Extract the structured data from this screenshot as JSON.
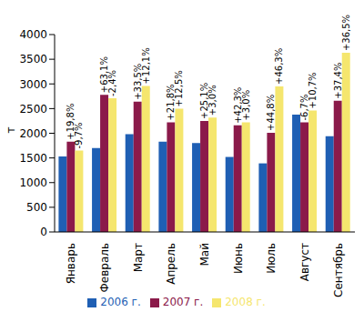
{
  "chart_data": {
    "type": "bar",
    "categories": [
      "Январь",
      "Февраль",
      "Март",
      "Апрель",
      "Май",
      "Июнь",
      "Июль",
      "Август",
      "Сентябрь"
    ],
    "series": [
      {
        "name": "2006 г.",
        "color": "#1f5fb4",
        "values": [
          1530,
          1700,
          1980,
          1830,
          1800,
          1520,
          1390,
          2380,
          1940
        ]
      },
      {
        "name": "2007 г.",
        "color": "#8b1a4a",
        "values": [
          1830,
          2780,
          2640,
          2220,
          2250,
          2160,
          2010,
          2220,
          2660
        ],
        "annotations": [
          "+19,8%",
          "+63,1%",
          "+33,5%",
          "+21,8%",
          "+25,1%",
          "+42,3%",
          "+44,8%",
          "-6,7%",
          "+37,4%"
        ]
      },
      {
        "name": "2008 г.",
        "color": "#f5e66e",
        "values": [
          1650,
          2710,
          2960,
          2500,
          2320,
          2220,
          2950,
          2460,
          3630
        ],
        "annotations": [
          "-9,7%",
          "-2,4%",
          "+12,1%",
          "+12,5%",
          "+3,0%",
          "+3,0%",
          "+46,3%",
          "+10,7%",
          "+36,5%"
        ]
      }
    ],
    "y_label": "т",
    "ylim": [
      0,
      4000
    ],
    "yticks": [
      0,
      500,
      1000,
      1500,
      2000,
      2500,
      3000,
      3500,
      4000
    ],
    "grid": false,
    "legend": "bottom"
  }
}
